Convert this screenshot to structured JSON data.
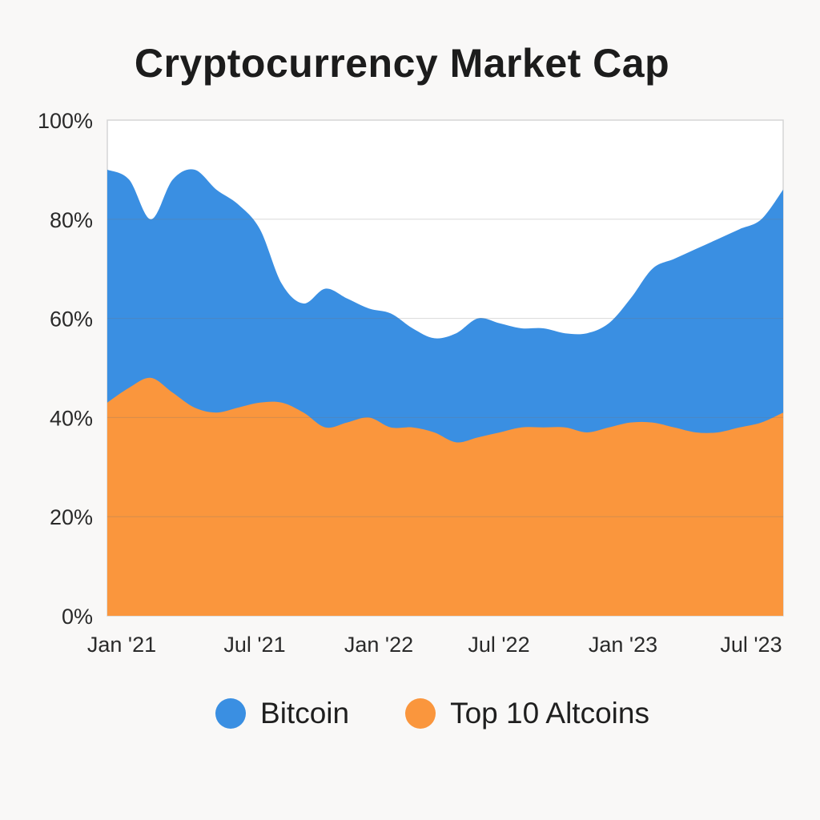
{
  "chart_data": {
    "type": "area",
    "stacked": false,
    "title": "Cryptocurrency Market Cap",
    "xlabel": "",
    "ylabel": "",
    "x_ticks": [
      "Jan '21",
      "Jul '21",
      "Jan '22",
      "Jul '22",
      "Jan '23",
      "Jul '23"
    ],
    "y_ticks": [
      "0%",
      "20%",
      "40%",
      "60%",
      "80%",
      "100%"
    ],
    "ylim": [
      0,
      100
    ],
    "grid": true,
    "legend_position": "bottom",
    "x": [
      "2021-01",
      "2021-02",
      "2021-03",
      "2021-04",
      "2021-05",
      "2021-06",
      "2021-07",
      "2021-08",
      "2021-09",
      "2021-10",
      "2021-11",
      "2021-12",
      "2022-01",
      "2022-02",
      "2022-03",
      "2022-04",
      "2022-05",
      "2022-06",
      "2022-07",
      "2022-08",
      "2022-09",
      "2022-10",
      "2022-11",
      "2022-12",
      "2023-01",
      "2023-02",
      "2023-03",
      "2023-04",
      "2023-05",
      "2023-06",
      "2023-07",
      "2023-08"
    ],
    "series": [
      {
        "name": "Bitcoin",
        "color": "#3a8fe2",
        "values": [
          90,
          88,
          80,
          88,
          90,
          86,
          83,
          78,
          67,
          63,
          66,
          64,
          62,
          61,
          58,
          56,
          57,
          60,
          59,
          58,
          58,
          57,
          57,
          59,
          64,
          70,
          72,
          74,
          76,
          78,
          80,
          86
        ]
      },
      {
        "name": "Top 10 Altcoins",
        "color": "#fa963d",
        "values": [
          43,
          46,
          48,
          45,
          42,
          41,
          42,
          43,
          43,
          41,
          38,
          39,
          40,
          38,
          38,
          37,
          35,
          36,
          37,
          38,
          38,
          38,
          37,
          38,
          39,
          39,
          38,
          37,
          37,
          38,
          39,
          41
        ]
      }
    ]
  }
}
